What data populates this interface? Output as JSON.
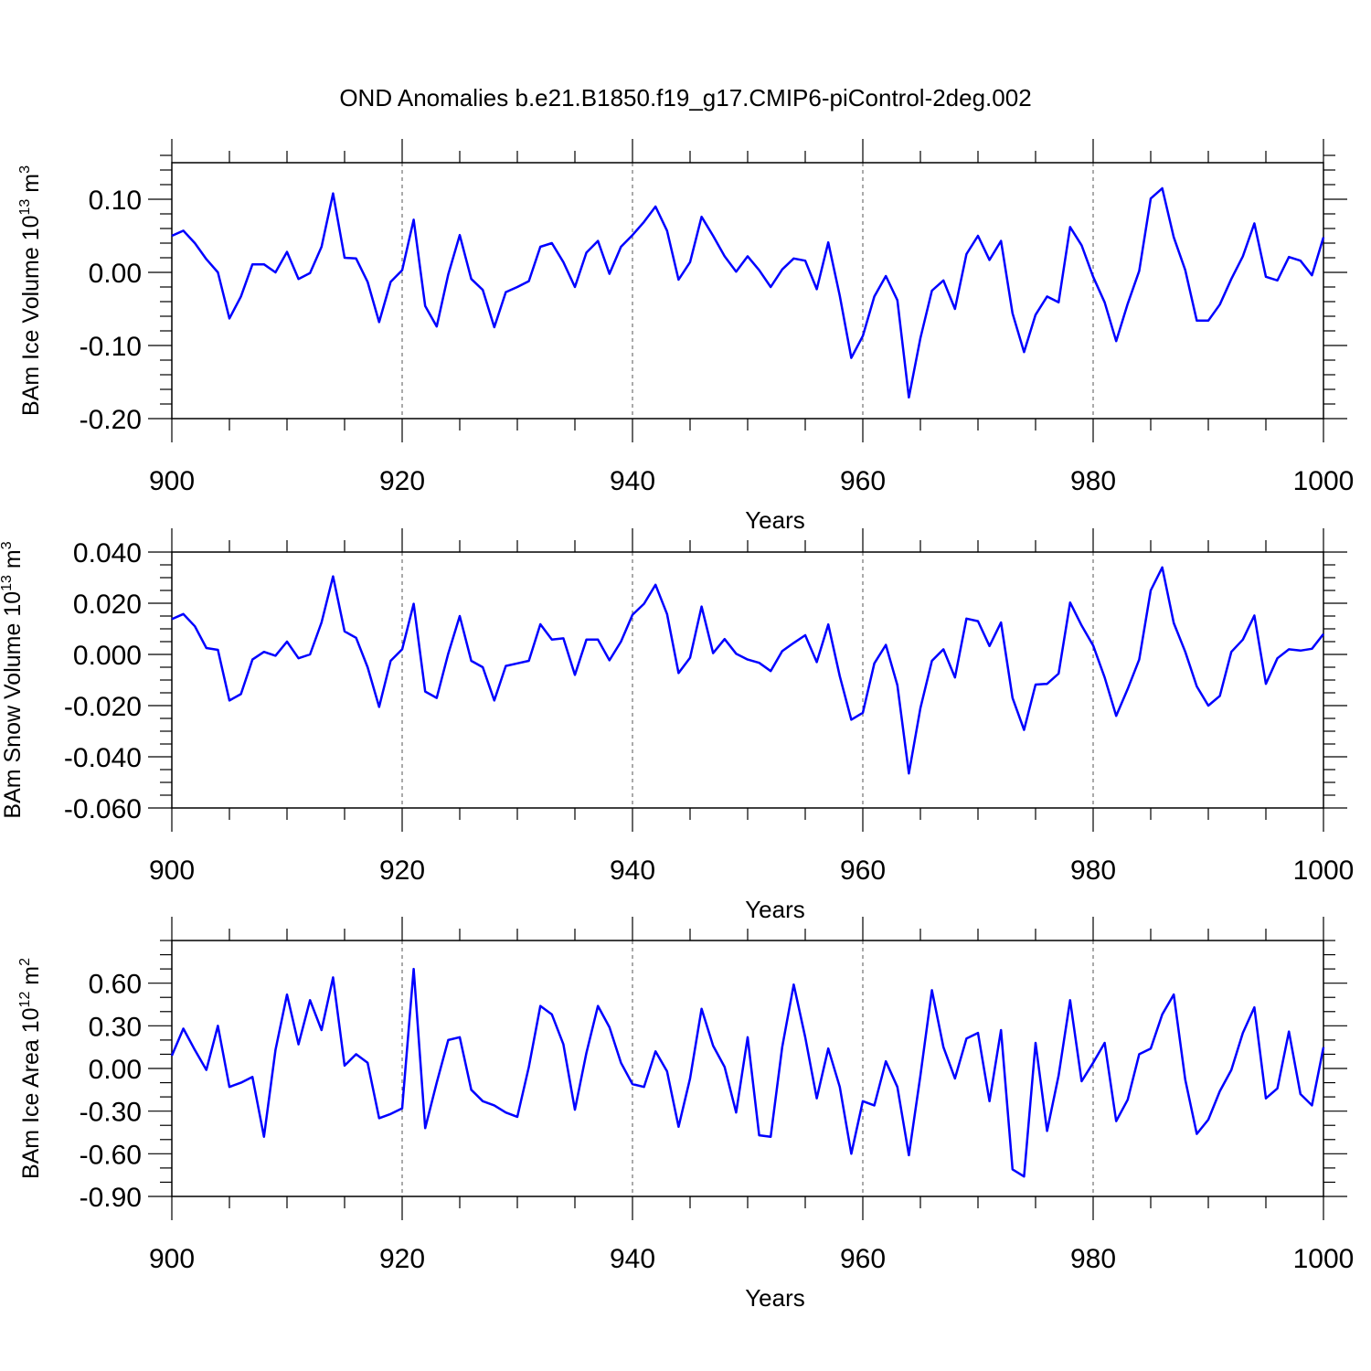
{
  "chart_data": {
    "title": "OND Anomalies b.e21.B1850.f19_g17.CMIP6-piControl-2deg.002",
    "series_color": "#0000ff",
    "panels": [
      {
        "type": "line",
        "xlabel": "Years",
        "ylabel_main": "BAm Ice Volume 10",
        "ylabel_exp": "13",
        "ylabel_unit": " m",
        "ylabel_unit_exp": "3",
        "xlim": [
          900,
          1000
        ],
        "ylim": [
          -0.2,
          0.15
        ],
        "x_ticks": [
          900,
          920,
          940,
          960,
          980,
          1000
        ],
        "x_tick_labels": [
          "900",
          "920",
          "940",
          "960",
          "980",
          "1000"
        ],
        "y_ticks": [
          0.1,
          0.0,
          -0.1,
          -0.2
        ],
        "y_tick_labels": [
          "0.10",
          "0.00",
          "-0.10",
          "-0.20"
        ],
        "y_minor_step": 0.02,
        "x": [
          900,
          901,
          902,
          903,
          904,
          905,
          906,
          907,
          908,
          909,
          910,
          911,
          912,
          913,
          914,
          915,
          916,
          917,
          918,
          919,
          920,
          921,
          922,
          923,
          924,
          925,
          926,
          927,
          928,
          929,
          930,
          931,
          932,
          933,
          934,
          935,
          936,
          937,
          938,
          939,
          940,
          941,
          942,
          943,
          944,
          945,
          946,
          947,
          948,
          949,
          950,
          951,
          952,
          953,
          954,
          955,
          956,
          957,
          958,
          959,
          960,
          961,
          962,
          963,
          964,
          965,
          966,
          967,
          968,
          969,
          970,
          971,
          972,
          973,
          974,
          975,
          976,
          977,
          978,
          979,
          980,
          981,
          982,
          983,
          984,
          985,
          986,
          987,
          988,
          989,
          990,
          991,
          992,
          993,
          994,
          995,
          996,
          997,
          998,
          999,
          1000
        ],
        "values": [
          0.05,
          0.057,
          0.04,
          0.018,
          0.0,
          -0.063,
          -0.033,
          0.011,
          0.011,
          0.0,
          0.028,
          -0.009,
          -0.001,
          0.035,
          0.108,
          0.02,
          0.019,
          -0.013,
          -0.068,
          -0.013,
          0.003,
          0.072,
          -0.046,
          -0.074,
          -0.003,
          0.051,
          -0.009,
          -0.024,
          -0.075,
          -0.027,
          -0.02,
          -0.012,
          0.035,
          0.04,
          0.014,
          -0.02,
          0.027,
          0.043,
          -0.002,
          0.035,
          0.051,
          0.069,
          0.09,
          0.057,
          -0.01,
          0.014,
          0.076,
          0.05,
          0.022,
          0.001,
          0.022,
          0.003,
          -0.02,
          0.004,
          0.019,
          0.016,
          -0.023,
          0.041,
          -0.032,
          -0.117,
          -0.087,
          -0.033,
          -0.005,
          -0.038,
          -0.171,
          -0.09,
          -0.025,
          -0.011,
          -0.05,
          0.025,
          0.05,
          0.017,
          0.043,
          -0.056,
          -0.109,
          -0.058,
          -0.033,
          -0.041,
          0.062,
          0.037,
          -0.006,
          -0.041,
          -0.094,
          -0.043,
          0.002,
          0.101,
          0.115,
          0.048,
          0.003,
          -0.066,
          -0.066,
          -0.044,
          -0.009,
          0.022,
          0.067,
          -0.006,
          -0.011,
          0.021,
          0.016,
          -0.004,
          0.048
        ]
      },
      {
        "type": "line",
        "xlabel": "Years",
        "ylabel_main": "BAm Snow Volume 10",
        "ylabel_exp": "13",
        "ylabel_unit": " m",
        "ylabel_unit_exp": "3",
        "xlim": [
          900,
          1000
        ],
        "ylim": [
          -0.06,
          0.04
        ],
        "x_ticks": [
          900,
          920,
          940,
          960,
          980,
          1000
        ],
        "x_tick_labels": [
          "900",
          "920",
          "940",
          "960",
          "980",
          "1000"
        ],
        "y_ticks": [
          0.04,
          0.02,
          0.0,
          -0.02,
          -0.04,
          -0.06
        ],
        "y_tick_labels": [
          "0.040",
          "0.020",
          "0.000",
          "-0.020",
          "-0.040",
          "-0.060"
        ],
        "y_minor_step": 0.005,
        "x": [
          900,
          901,
          902,
          903,
          904,
          905,
          906,
          907,
          908,
          909,
          910,
          911,
          912,
          913,
          914,
          915,
          916,
          917,
          918,
          919,
          920,
          921,
          922,
          923,
          924,
          925,
          926,
          927,
          928,
          929,
          930,
          931,
          932,
          933,
          934,
          935,
          936,
          937,
          938,
          939,
          940,
          941,
          942,
          943,
          944,
          945,
          946,
          947,
          948,
          949,
          950,
          951,
          952,
          953,
          954,
          955,
          956,
          957,
          958,
          959,
          960,
          961,
          962,
          963,
          964,
          965,
          966,
          967,
          968,
          969,
          970,
          971,
          972,
          973,
          974,
          975,
          976,
          977,
          978,
          979,
          980,
          981,
          982,
          983,
          984,
          985,
          986,
          987,
          988,
          989,
          990,
          991,
          992,
          993,
          994,
          995,
          996,
          997,
          998,
          999,
          1000
        ],
        "values": [
          0.0138,
          0.0158,
          0.011,
          0.0025,
          0.0018,
          -0.018,
          -0.0155,
          -0.002,
          0.001,
          -0.0005,
          0.005,
          -0.0015,
          0.0,
          0.0125,
          0.0305,
          0.009,
          0.0065,
          -0.005,
          -0.0205,
          -0.0025,
          0.002,
          0.0198,
          -0.0145,
          -0.017,
          0.0003,
          0.015,
          -0.0025,
          -0.005,
          -0.018,
          -0.0045,
          -0.0035,
          -0.0025,
          0.0118,
          0.0058,
          0.0063,
          -0.008,
          0.0058,
          0.0058,
          -0.0023,
          0.005,
          0.0155,
          0.0198,
          0.0272,
          0.0158,
          -0.0073,
          -0.0013,
          0.0187,
          0.0005,
          0.006,
          0.0003,
          -0.002,
          -0.0033,
          -0.0065,
          0.0013,
          0.0045,
          0.0075,
          -0.003,
          0.0117,
          -0.0085,
          -0.0255,
          -0.0228,
          -0.0035,
          0.0037,
          -0.012,
          -0.0465,
          -0.021,
          -0.0025,
          0.002,
          -0.009,
          0.014,
          0.013,
          0.0033,
          0.0125,
          -0.017,
          -0.0295,
          -0.0118,
          -0.0115,
          -0.0075,
          0.0203,
          0.0113,
          0.0035,
          -0.009,
          -0.024,
          -0.0135,
          -0.002,
          0.025,
          0.034,
          0.0123,
          0.001,
          -0.0125,
          -0.02,
          -0.0162,
          0.001,
          0.0058,
          0.0152,
          -0.0115,
          -0.0015,
          0.002,
          0.0015,
          0.0022,
          0.008
        ]
      },
      {
        "type": "line",
        "xlabel": "Years",
        "ylabel_main": "BAm Ice Area 10",
        "ylabel_exp": "12",
        "ylabel_unit": " m",
        "ylabel_unit_exp": "2",
        "xlim": [
          900,
          1000
        ],
        "ylim": [
          -0.9,
          0.9
        ],
        "x_ticks": [
          900,
          920,
          940,
          960,
          980,
          1000
        ],
        "x_tick_labels": [
          "900",
          "920",
          "940",
          "960",
          "980",
          "1000"
        ],
        "y_ticks": [
          0.6,
          0.3,
          0.0,
          -0.3,
          -0.6,
          -0.9
        ],
        "y_tick_labels": [
          "0.60",
          "0.30",
          "0.00",
          "-0.30",
          "-0.60",
          "-0.90"
        ],
        "y_minor_step": 0.1,
        "x": [
          900,
          901,
          902,
          903,
          904,
          905,
          906,
          907,
          908,
          909,
          910,
          911,
          912,
          913,
          914,
          915,
          916,
          917,
          918,
          919,
          920,
          921,
          922,
          923,
          924,
          925,
          926,
          927,
          928,
          929,
          930,
          931,
          932,
          933,
          934,
          935,
          936,
          937,
          938,
          939,
          940,
          941,
          942,
          943,
          944,
          945,
          946,
          947,
          948,
          949,
          950,
          951,
          952,
          953,
          954,
          955,
          956,
          957,
          958,
          959,
          960,
          961,
          962,
          963,
          964,
          965,
          966,
          967,
          968,
          969,
          970,
          971,
          972,
          973,
          974,
          975,
          976,
          977,
          978,
          979,
          980,
          981,
          982,
          983,
          984,
          985,
          986,
          987,
          988,
          989,
          990,
          991,
          992,
          993,
          994,
          995,
          996,
          997,
          998,
          999,
          1000
        ],
        "values": [
          0.09,
          0.28,
          0.13,
          -0.01,
          0.3,
          -0.13,
          -0.1,
          -0.06,
          -0.48,
          0.13,
          0.52,
          0.17,
          0.48,
          0.27,
          0.64,
          0.02,
          0.1,
          0.04,
          -0.35,
          -0.32,
          -0.28,
          0.7,
          -0.42,
          -0.1,
          0.2,
          0.22,
          -0.15,
          -0.23,
          -0.26,
          -0.31,
          -0.34,
          0.01,
          0.44,
          0.38,
          0.17,
          -0.29,
          0.11,
          0.44,
          0.29,
          0.04,
          -0.11,
          -0.13,
          0.12,
          -0.02,
          -0.41,
          -0.07,
          0.42,
          0.16,
          0.01,
          -0.31,
          0.22,
          -0.47,
          -0.48,
          0.15,
          0.59,
          0.22,
          -0.21,
          0.14,
          -0.13,
          -0.6,
          -0.23,
          -0.26,
          0.05,
          -0.13,
          -0.61,
          -0.05,
          0.55,
          0.15,
          -0.07,
          0.21,
          0.25,
          -0.23,
          0.27,
          -0.71,
          -0.76,
          0.18,
          -0.44,
          -0.05,
          0.48,
          -0.09,
          0.04,
          0.18,
          -0.37,
          -0.22,
          0.1,
          0.14,
          0.38,
          0.52,
          -0.08,
          -0.46,
          -0.36,
          -0.16,
          -0.01,
          0.25,
          0.43,
          -0.21,
          -0.14,
          0.26,
          -0.18,
          -0.26,
          0.15
        ]
      }
    ]
  }
}
